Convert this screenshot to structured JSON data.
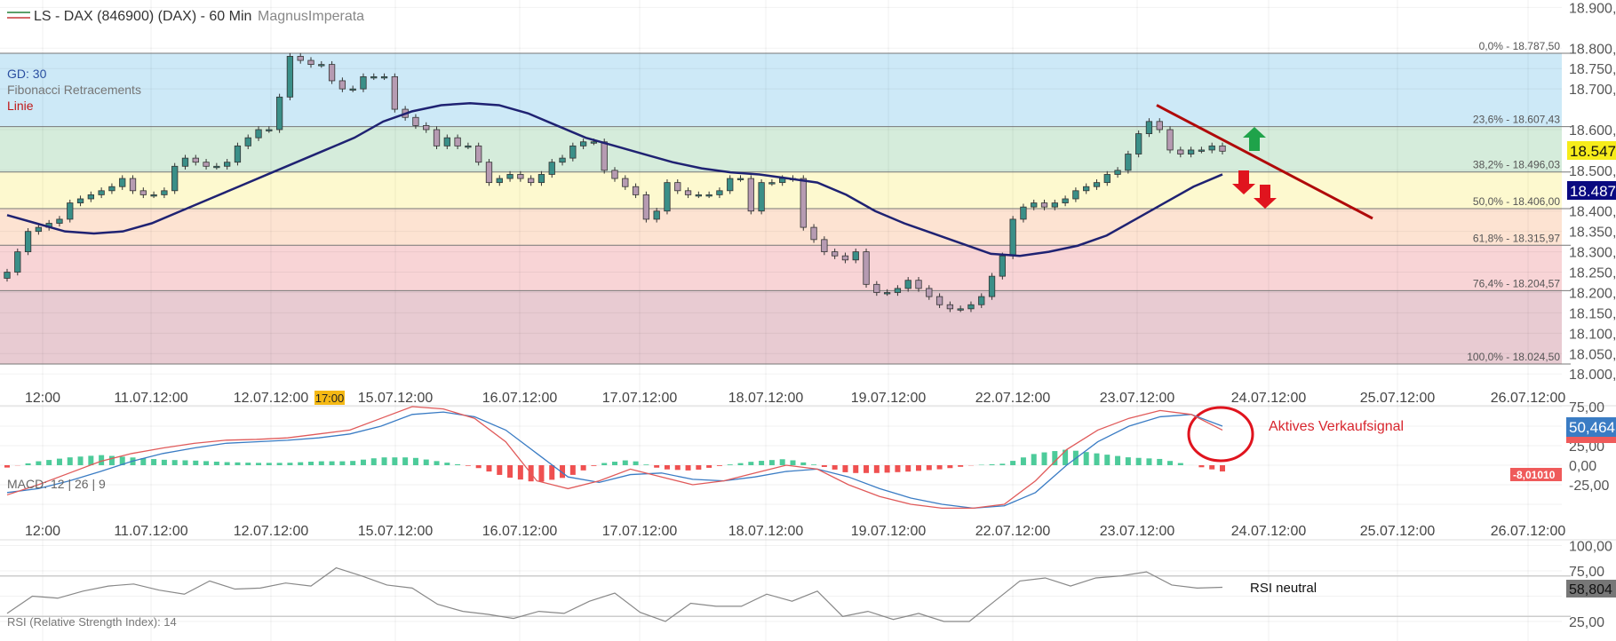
{
  "header": {
    "title": "LS - DAX (846900) (DAX) - 60 Min",
    "author": "MagnusImperata",
    "legend_colors": [
      "#5aa06a",
      "#d46a6a"
    ]
  },
  "overlay_labels": {
    "gd": "GD: 30",
    "fib": "Fibonacci Retracements",
    "line": "Linie"
  },
  "colors": {
    "up_candle": "#3a8f88",
    "down_candle": "#b69bb2",
    "gd30": "#1f2272",
    "trendline": "#b00a0a",
    "macd": "#e05a5a",
    "signal": "#3a7cc4",
    "hist_pos": "#4dcb9a",
    "hist_neg": "#ef5050",
    "rsi": "#888888",
    "arrow_up": "#1fa34a",
    "arrow_down": "#e0141e"
  },
  "chart_data": [
    {
      "type": "candlestick",
      "title": "LS - DAX (846900) (DAX) - 60 Min",
      "x_tick_labels": [
        "12:00",
        "11.07.12:00",
        "12.07.12:00",
        "15.07.12:00",
        "16.07.12:00",
        "17.07.12:00",
        "18.07.12:00",
        "19.07.12:00",
        "22.07.12:00",
        "23.07.12:00",
        "24.07.12:00",
        "25.07.12:00",
        "26.07.12:00"
      ],
      "crosshair_time_label": "17:00",
      "y_tick_labels": [
        "18.900,00",
        "18.800,00",
        "18.750,00",
        "18.700,00",
        "18.600,00",
        "18.500,00",
        "18.400,00",
        "18.350,00",
        "18.300,00",
        "18.250,00",
        "18.200,00",
        "18.150,00",
        "18.100,00",
        "18.050,00",
        "18.000,00"
      ],
      "y_ticks": [
        18900,
        18800,
        18750,
        18700,
        18600,
        18500,
        18400,
        18350,
        18300,
        18250,
        18200,
        18150,
        18100,
        18050,
        18000
      ],
      "ylim": [
        18000,
        18900
      ],
      "closes": [
        18250,
        18300,
        18350,
        18360,
        18370,
        18380,
        18420,
        18430,
        18440,
        18450,
        18460,
        18480,
        18450,
        18440,
        18440,
        18450,
        18510,
        18530,
        18520,
        18510,
        18510,
        18520,
        18560,
        18580,
        18600,
        18600,
        18680,
        18780,
        18770,
        18760,
        18760,
        18720,
        18700,
        18700,
        18730,
        18730,
        18730,
        18650,
        18630,
        18610,
        18600,
        18560,
        18580,
        18560,
        18560,
        18520,
        18470,
        18480,
        18490,
        18480,
        18470,
        18490,
        18520,
        18530,
        18560,
        18570,
        18570,
        18500,
        18480,
        18460,
        18440,
        18380,
        18400,
        18470,
        18450,
        18440,
        18440,
        18440,
        18450,
        18480,
        18480,
        18400,
        18470,
        18470,
        18480,
        18480,
        18360,
        18330,
        18300,
        18290,
        18280,
        18300,
        18220,
        18200,
        18200,
        18210,
        18230,
        18210,
        18190,
        18170,
        18160,
        18160,
        18170,
        18190,
        18240,
        18290,
        18380,
        18410,
        18420,
        18410,
        18420,
        18430,
        18450,
        18460,
        18470,
        18490,
        18500,
        18540,
        18590,
        18620,
        18600,
        18550,
        18540,
        18550,
        18550,
        18560,
        18547
      ],
      "gd30": [
        18390,
        18370,
        18350,
        18345,
        18350,
        18370,
        18400,
        18430,
        18460,
        18490,
        18520,
        18550,
        18580,
        18620,
        18645,
        18660,
        18665,
        18660,
        18640,
        18610,
        18580,
        18560,
        18540,
        18520,
        18505,
        18495,
        18490,
        18480,
        18470,
        18440,
        18400,
        18370,
        18345,
        18320,
        18295,
        18290,
        18300,
        18315,
        18340,
        18380,
        18420,
        18460,
        18490
      ],
      "last_price_label": "18.547",
      "gd30_label": "18.487",
      "fibonacci": [
        {
          "label": "0,0% - 18.787,50",
          "value": 18787.5,
          "fill": "#cde9f7"
        },
        {
          "label": "23,6% - 18.607,43",
          "value": 18607.43,
          "fill": "#d5ecdb"
        },
        {
          "label": "38,2% - 18.496,03",
          "value": 18496.03,
          "fill": "#fdf9cf"
        },
        {
          "label": "50,0% - 18.406,00",
          "value": 18406.0,
          "fill": "#fde3d2"
        },
        {
          "label": "61,8% - 18.315,97",
          "value": 18315.97,
          "fill": "#f8d4d6"
        },
        {
          "label": "76,4% - 18.204,57",
          "value": 18204.57,
          "fill": "#e8cbd2"
        },
        {
          "label": "100,0% - 18.024,50",
          "value": 18024.5,
          "fill": null
        }
      ],
      "trendline": {
        "from": 18660,
        "to": 18382
      }
    },
    {
      "type": "line",
      "title": "MACD: 12 | 26 | 9",
      "y_tick_labels": [
        "75,00",
        "25,00",
        "0,00",
        "-25,00"
      ],
      "y_ticks": [
        75,
        25,
        0,
        -25
      ],
      "macd": [
        -38,
        -25,
        -10,
        5,
        15,
        22,
        28,
        32,
        33,
        35,
        40,
        45,
        60,
        75,
        72,
        60,
        30,
        -20,
        -30,
        -20,
        -5,
        -15,
        -25,
        -20,
        -10,
        0,
        -5,
        -25,
        -40,
        -50,
        -55,
        -55,
        -50,
        -20,
        20,
        45,
        60,
        70,
        65,
        45
      ],
      "signal": [
        -35,
        -30,
        -20,
        -8,
        5,
        15,
        22,
        28,
        30,
        32,
        35,
        40,
        50,
        65,
        68,
        62,
        45,
        15,
        -15,
        -22,
        -12,
        -10,
        -18,
        -20,
        -15,
        -8,
        -5,
        -15,
        -30,
        -42,
        -50,
        -55,
        -52,
        -35,
        0,
        30,
        50,
        62,
        65,
        50
      ],
      "histogram": [
        -3,
        5,
        10,
        13,
        10,
        7,
        6,
        4,
        3,
        3,
        5,
        5,
        10,
        10,
        4,
        -2,
        -15,
        -22,
        -15,
        2,
        7,
        -5,
        -7,
        0,
        5,
        8,
        0,
        -10,
        -10,
        -8,
        -5,
        0,
        2,
        15,
        20,
        15,
        10,
        8,
        0,
        -8
      ],
      "signal_value_label": "50,464",
      "histogram_value_label": "-8,01010",
      "annotation": "Aktives Verkaufsignal"
    },
    {
      "type": "line",
      "title": "RSI (Relative Strength Index): 14",
      "y_tick_labels": [
        "100,00",
        "75,00",
        "25,00"
      ],
      "y_ticks": [
        100,
        75,
        25
      ],
      "bands": [
        70,
        30
      ],
      "values": [
        33,
        50,
        48,
        55,
        60,
        62,
        56,
        52,
        65,
        57,
        58,
        63,
        60,
        78,
        70,
        61,
        58,
        42,
        35,
        32,
        28,
        35,
        33,
        45,
        53,
        34,
        25,
        43,
        40,
        40,
        52,
        45,
        55,
        30,
        35,
        27,
        33,
        25,
        25,
        45,
        65,
        68,
        60,
        68,
        70,
        74,
        61,
        58,
        58.8
      ],
      "value_label": "58,804",
      "annotation": "RSI neutral"
    }
  ]
}
